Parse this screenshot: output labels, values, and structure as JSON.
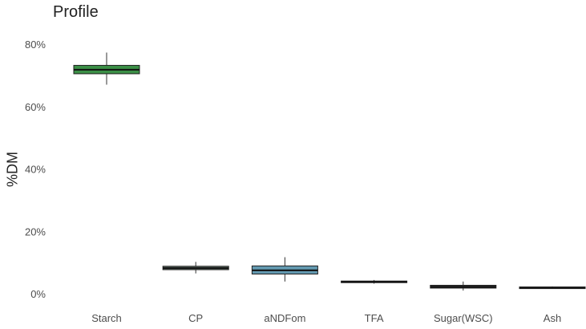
{
  "chart_data": {
    "type": "box",
    "title": "Profile",
    "xlabel": "",
    "ylabel": "%DM",
    "ylim": [
      0,
      80
    ],
    "yticks": [
      0,
      20,
      40,
      60,
      80
    ],
    "ytick_labels": [
      "0%",
      "20%",
      "40%",
      "60%",
      "80%"
    ],
    "grid": false,
    "legend": "none",
    "categories": [
      "Starch",
      "CP",
      "aNDFom",
      "TFA",
      "Sugar(WSC)",
      "Ash"
    ],
    "boxes": [
      {
        "category": "Starch",
        "whisker_low": 67,
        "q1": 70.5,
        "median": 71.8,
        "q3": 73.2,
        "whisker_high": 77.3,
        "color": "#3b8f46"
      },
      {
        "category": "CP",
        "whisker_low": 6.5,
        "q1": 7.7,
        "median": 8.2,
        "q3": 8.8,
        "whisker_high": 10.2,
        "color": "#5f6f66"
      },
      {
        "category": "aNDFom",
        "whisker_low": 3.9,
        "q1": 6.3,
        "median": 7.5,
        "q3": 8.9,
        "whisker_high": 11.7,
        "color": "#6399b0"
      },
      {
        "category": "TFA",
        "whisker_low": 3.2,
        "q1": 3.6,
        "median": 3.8,
        "q3": 4.0,
        "whisker_high": 4.4,
        "color": "#404040"
      },
      {
        "category": "Sugar(WSC)",
        "whisker_low": 1.0,
        "q1": 1.8,
        "median": 2.2,
        "q3": 2.7,
        "whisker_high": 3.9,
        "color": "#404040"
      },
      {
        "category": "Ash",
        "whisker_low": 1.6,
        "q1": 1.8,
        "median": 1.9,
        "q3": 2.0,
        "whisker_high": 2.3,
        "color": "#404040"
      }
    ]
  }
}
